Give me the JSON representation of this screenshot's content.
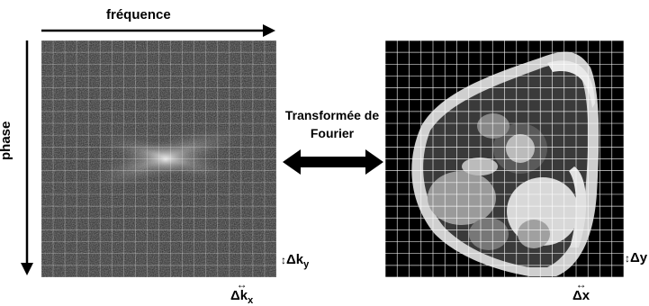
{
  "labels": {
    "frequency": "fréquence",
    "phase": "phase",
    "transform": "Transformée de Fourier",
    "delta_ky": "Δk",
    "delta_ky_sub": "y",
    "delta_kx": "Δk",
    "delta_kx_sub": "x",
    "delta_y": "Δy",
    "delta_x": "Δx"
  },
  "colors": {
    "grid_line": "#ffffff",
    "arrow": "#000000",
    "kspace_bg": "#2a2a2a",
    "mri_bg": "#000000"
  },
  "grid": {
    "rows": 20,
    "cols": 20
  }
}
